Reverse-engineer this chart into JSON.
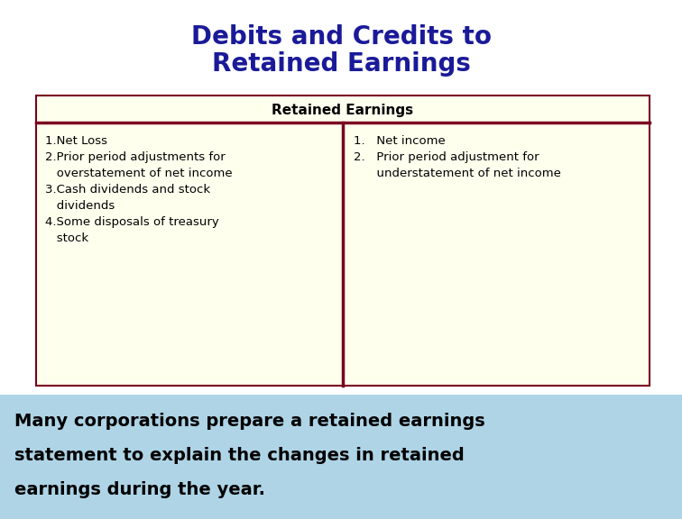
{
  "title_line1": "Debits and Credits to",
  "title_line2": "Retained Earnings",
  "title_color": "#1a1a99",
  "table_header": "Retained Earnings",
  "table_bg": "#ffffee",
  "table_border_color": "#7a0020",
  "debit_items": [
    "1.Net Loss",
    "2.Prior period adjustments for",
    "   overstatement of net income",
    "3.Cash dividends and stock",
    "   dividends",
    "4.Some disposals of treasury",
    "   stock"
  ],
  "credit_items": [
    "1.   Net income",
    "2.   Prior period adjustment for",
    "      understatement of net income"
  ],
  "bottom_bg": "#aed4e6",
  "bottom_text_line1": "Many corporations prepare a retained earnings",
  "bottom_text_line2": "statement to explain the changes in retained",
  "bottom_text_line3": "earnings during the year.",
  "bottom_text_color": "#000000",
  "fig_bg": "#ffffff"
}
